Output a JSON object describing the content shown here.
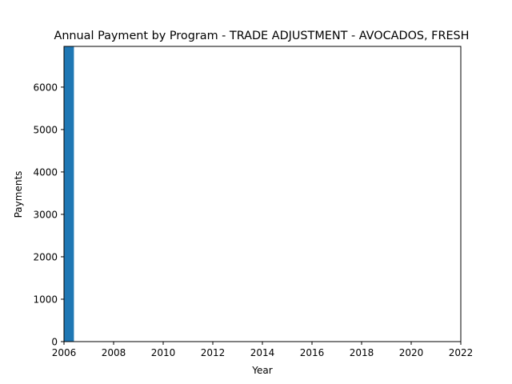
{
  "chart_data": {
    "type": "bar",
    "title": "Annual Payment by Program - TRADE ADJUSTMENT - AVOCADOS, FRESH",
    "xlabel": "Year",
    "ylabel": "Payments",
    "x": [
      2006
    ],
    "values": [
      6960
    ],
    "bar_width_years": 0.4,
    "xlim": [
      2006,
      2022
    ],
    "ylim": [
      0,
      6960
    ],
    "xticks": [
      "2006",
      "2008",
      "2010",
      "2012",
      "2014",
      "2016",
      "2018",
      "2020",
      "2022"
    ],
    "yticks": [
      "0",
      "1000",
      "2000",
      "3000",
      "4000",
      "5000",
      "6000"
    ],
    "grid": false,
    "legend": "none",
    "bar_color": "#1f77b4"
  }
}
